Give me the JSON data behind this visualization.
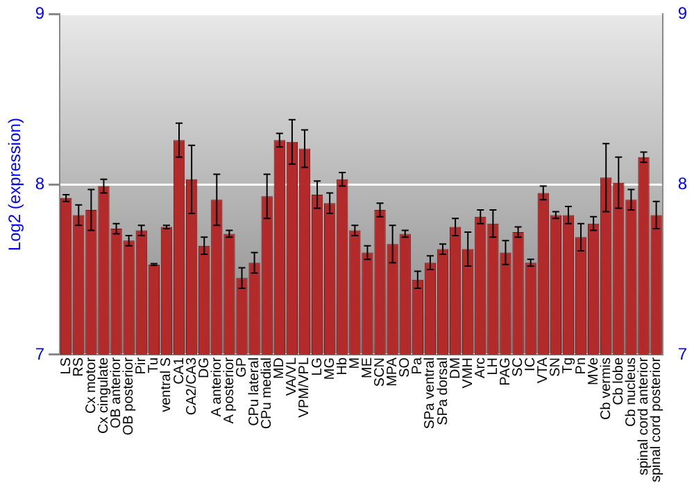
{
  "chart_data": {
    "type": "bar",
    "ylabel": "Log2 (expression)",
    "categories": [
      "LS",
      "RS",
      "Cx motor",
      "Cx cingulate",
      "OB anterior",
      "OB posterior",
      "Pir",
      "Tu",
      "ventral S",
      "CA1",
      "CA2/CA3",
      "DG",
      "A anterior",
      "A posterior",
      "GP",
      "CPu lateral",
      "CPu medial",
      "MD",
      "VA/VL",
      "VPM/VPL",
      "LG",
      "MG",
      "Hb",
      "M",
      "ME",
      "SCN",
      "MPA",
      "SO",
      "Pa",
      "SPa ventral",
      "SPa dorsal",
      "DM",
      "VMH",
      "Arc",
      "LH",
      "PAG",
      "SC",
      "IC",
      "VTA",
      "SN",
      "Tg",
      "Pn",
      "MVe",
      "Cb vermis",
      "Cb lobe",
      "Cb nucleus",
      "spinal cord anterior",
      "spinal cord posterior"
    ],
    "values": [
      7.92,
      7.82,
      7.85,
      7.99,
      7.74,
      7.67,
      7.73,
      7.53,
      7.75,
      8.26,
      8.03,
      7.64,
      7.91,
      7.71,
      7.45,
      7.54,
      7.93,
      8.26,
      8.25,
      8.21,
      7.94,
      7.89,
      8.03,
      7.73,
      7.6,
      7.85,
      7.65,
      7.71,
      7.44,
      7.54,
      7.62,
      7.75,
      7.62,
      7.81,
      7.77,
      7.6,
      7.72,
      7.54,
      7.95,
      7.82,
      7.82,
      7.69,
      7.77,
      8.04,
      8.01,
      7.91,
      8.16,
      7.82
    ],
    "errors": [
      0.02,
      0.06,
      0.12,
      0.04,
      0.03,
      0.03,
      0.03,
      0.005,
      0.01,
      0.1,
      0.2,
      0.05,
      0.15,
      0.02,
      0.06,
      0.06,
      0.13,
      0.04,
      0.13,
      0.11,
      0.08,
      0.06,
      0.04,
      0.03,
      0.04,
      0.04,
      0.11,
      0.02,
      0.05,
      0.04,
      0.03,
      0.05,
      0.1,
      0.04,
      0.08,
      0.07,
      0.03,
      0.02,
      0.04,
      0.02,
      0.05,
      0.08,
      0.04,
      0.2,
      0.15,
      0.06,
      0.03,
      0.08
    ],
    "color": "#b22a2a",
    "ylim": [
      7,
      9
    ],
    "yticks": [
      7,
      8,
      9
    ],
    "y2lim": [
      7,
      9
    ],
    "y2ticks": [
      7,
      8,
      9
    ],
    "grid": "y"
  }
}
